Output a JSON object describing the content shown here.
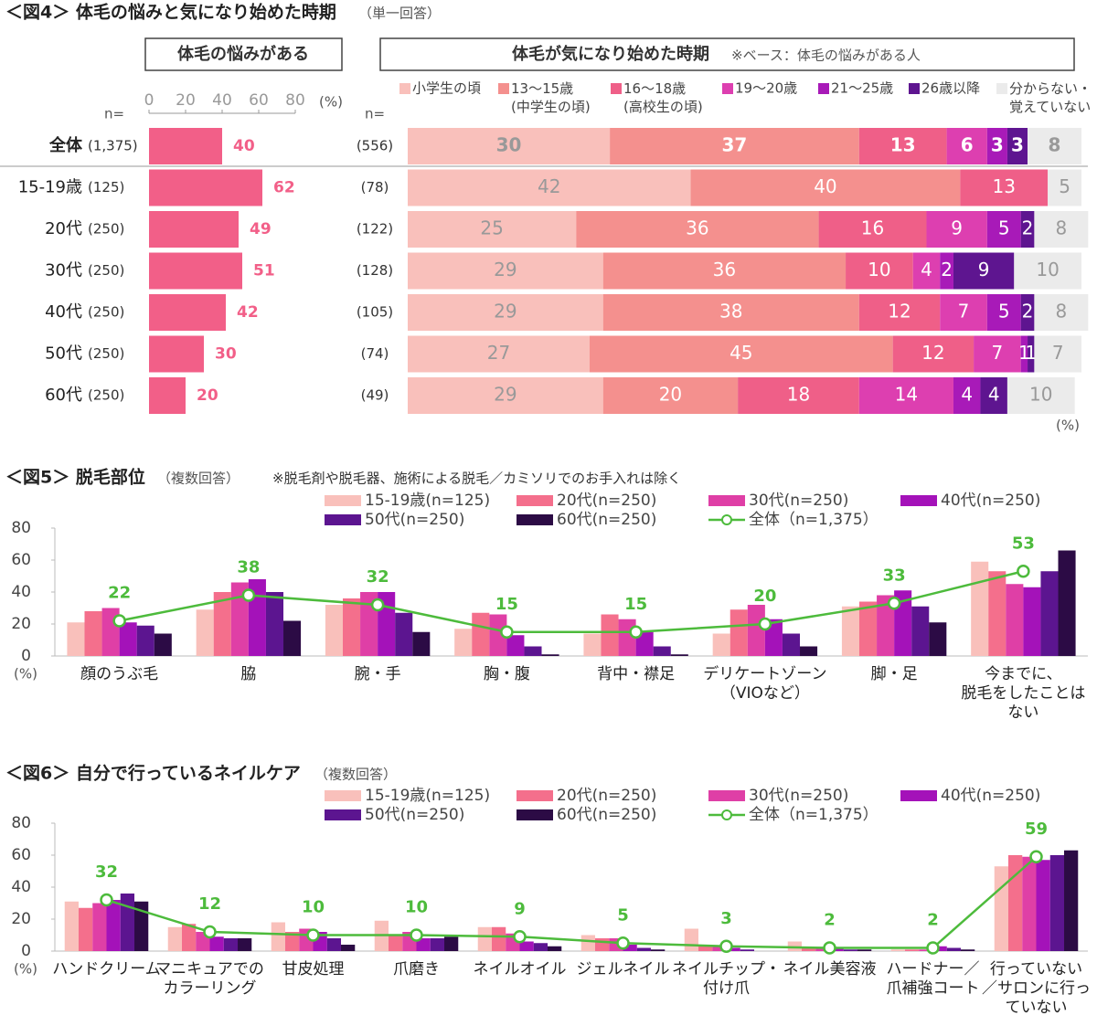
{
  "chart_data": [
    {
      "type": "hbar",
      "title": "＜図4＞ 体毛の悩みと気になり始めた時期",
      "subtitle": "（単一回答）",
      "header": "体毛の悩みがある",
      "n_label": "n=",
      "categories": [
        "全体",
        "15-19歳",
        "20代",
        "30代",
        "40代",
        "50代",
        "60代"
      ],
      "n_values": [
        "(1,375)",
        "(125)",
        "(250)",
        "(250)",
        "(250)",
        "(250)",
        "(250)"
      ],
      "values": [
        40,
        62,
        49,
        51,
        42,
        30,
        20
      ],
      "color": "#f25f88",
      "xlim": [
        0,
        80
      ],
      "xticks": [
        0,
        20,
        40,
        60,
        80
      ],
      "unit": "(%)"
    },
    {
      "type": "stacked_hbar",
      "header": "体毛が気になり始めた時期",
      "note": "※ベース：体毛の悩みがある人",
      "n_label": "n=",
      "n_values": [
        "(556)",
        "(78)",
        "(122)",
        "(128)",
        "(105)",
        "(74)",
        "(49)"
      ],
      "series": [
        {
          "name": "小学生の頃",
          "color": "#f9c0bb",
          "values": [
            30,
            42,
            25,
            29,
            29,
            27,
            29
          ]
        },
        {
          "name": "13～15歳\n(中学生の頃)",
          "color": "#f4908e",
          "values": [
            37,
            40,
            36,
            36,
            38,
            45,
            20
          ]
        },
        {
          "name": "16～18歳\n(高校生の頃)",
          "color": "#ef5f88",
          "values": [
            13,
            13,
            16,
            10,
            12,
            12,
            18
          ]
        },
        {
          "name": "19～20歳",
          "color": "#dd3fb0",
          "values": [
            6,
            0,
            9,
            4,
            7,
            7,
            14
          ]
        },
        {
          "name": "21～25歳",
          "color": "#a81ab8",
          "values": [
            3,
            0,
            5,
            2,
            5,
            1,
            4
          ]
        },
        {
          "name": "26歳以降",
          "color": "#5e1590",
          "values": [
            3,
            0,
            2,
            9,
            2,
            1,
            4
          ]
        },
        {
          "name": "分からない・\n覚えていない",
          "color": "#ebebeb",
          "values": [
            8,
            5,
            8,
            10,
            8,
            7,
            10
          ]
        }
      ],
      "unit": "(%)"
    },
    {
      "type": "grouped_bar_line",
      "title": "＜図5＞ 脱毛部位",
      "subtitle": "（複数回答）",
      "note": "※脱毛剤や脱毛器、施術による脱毛／カミソリでのお手入れは除く",
      "categories": [
        "顔のうぶ毛",
        "脇",
        "腕・手",
        "胸・腹",
        "背中・襟足",
        "デリケートゾーン\n（VIOなど）",
        "脚・足",
        "今までに、\n脱毛をしたことは\nない"
      ],
      "series": [
        {
          "name": "15-19歳(n=125)",
          "color": "#f9c0bb",
          "values": [
            21,
            29,
            32,
            17,
            14,
            14,
            31,
            59
          ]
        },
        {
          "name": "20代(n=250)",
          "color": "#f46f8c",
          "values": [
            28,
            40,
            36,
            27,
            26,
            29,
            34,
            53
          ]
        },
        {
          "name": "30代(n=250)",
          "color": "#df3fa6",
          "values": [
            30,
            46,
            40,
            26,
            23,
            32,
            38,
            45
          ]
        },
        {
          "name": "40代(n=250)",
          "color": "#a412b9",
          "values": [
            21,
            48,
            40,
            13,
            15,
            23,
            41,
            43
          ]
        },
        {
          "name": "50代(n=250)",
          "color": "#5c1590",
          "values": [
            19,
            40,
            27,
            6,
            6,
            14,
            31,
            53
          ]
        },
        {
          "name": "60代(n=250)",
          "color": "#2c0b45",
          "values": [
            14,
            22,
            15,
            1,
            1,
            6,
            21,
            66
          ]
        },
        {
          "name": "全体（n=1,375）",
          "color": "#4dbb3c",
          "type": "line",
          "values": [
            22,
            38,
            32,
            15,
            15,
            20,
            33,
            53
          ]
        }
      ],
      "ylim": [
        0,
        80
      ],
      "yticks": [
        0,
        20,
        40,
        60,
        80
      ],
      "unit": "(%)"
    },
    {
      "type": "grouped_bar_line",
      "title": "＜図6＞ 自分で行っているネイルケア",
      "subtitle": "（複数回答）",
      "categories": [
        "ハンドクリーム",
        "マニキュアでの\nカラーリング",
        "甘皮処理",
        "爪磨き",
        "ネイルオイル",
        "ジェルネイル",
        "ネイルチップ・\n付け爪",
        "ネイル美容液",
        "ハードナー／\n爪補強コート",
        "行っていない\n／サロンに行っ\nていない"
      ],
      "series": [
        {
          "name": "15-19歳(n=125)",
          "color": "#f9c0bb",
          "values": [
            31,
            15,
            18,
            19,
            15,
            10,
            14,
            6,
            1,
            53
          ]
        },
        {
          "name": "20代(n=250)",
          "color": "#f46f8c",
          "values": [
            27,
            17,
            12,
            10,
            15,
            8,
            3,
            2,
            1,
            60
          ]
        },
        {
          "name": "30代(n=250)",
          "color": "#df3fa6",
          "values": [
            30,
            12,
            14,
            12,
            11,
            8,
            3,
            2,
            1,
            59
          ]
        },
        {
          "name": "40代(n=250)",
          "color": "#a412b9",
          "values": [
            32,
            9,
            12,
            8,
            6,
            4,
            2,
            2,
            3,
            57
          ]
        },
        {
          "name": "50代(n=250)",
          "color": "#5c1590",
          "values": [
            36,
            8,
            8,
            8,
            5,
            2,
            1,
            1,
            2,
            60
          ]
        },
        {
          "name": "60代(n=250)",
          "color": "#2c0b45",
          "values": [
            31,
            8,
            4,
            9,
            3,
            1,
            0,
            1,
            1,
            63
          ]
        },
        {
          "name": "全体（n=1,375）",
          "color": "#4dbb3c",
          "type": "line",
          "values": [
            32,
            12,
            10,
            10,
            9,
            5,
            3,
            2,
            2,
            59
          ]
        }
      ],
      "ylim": [
        0,
        80
      ],
      "yticks": [
        0,
        20,
        40,
        60,
        80
      ],
      "unit": "(%)"
    }
  ]
}
